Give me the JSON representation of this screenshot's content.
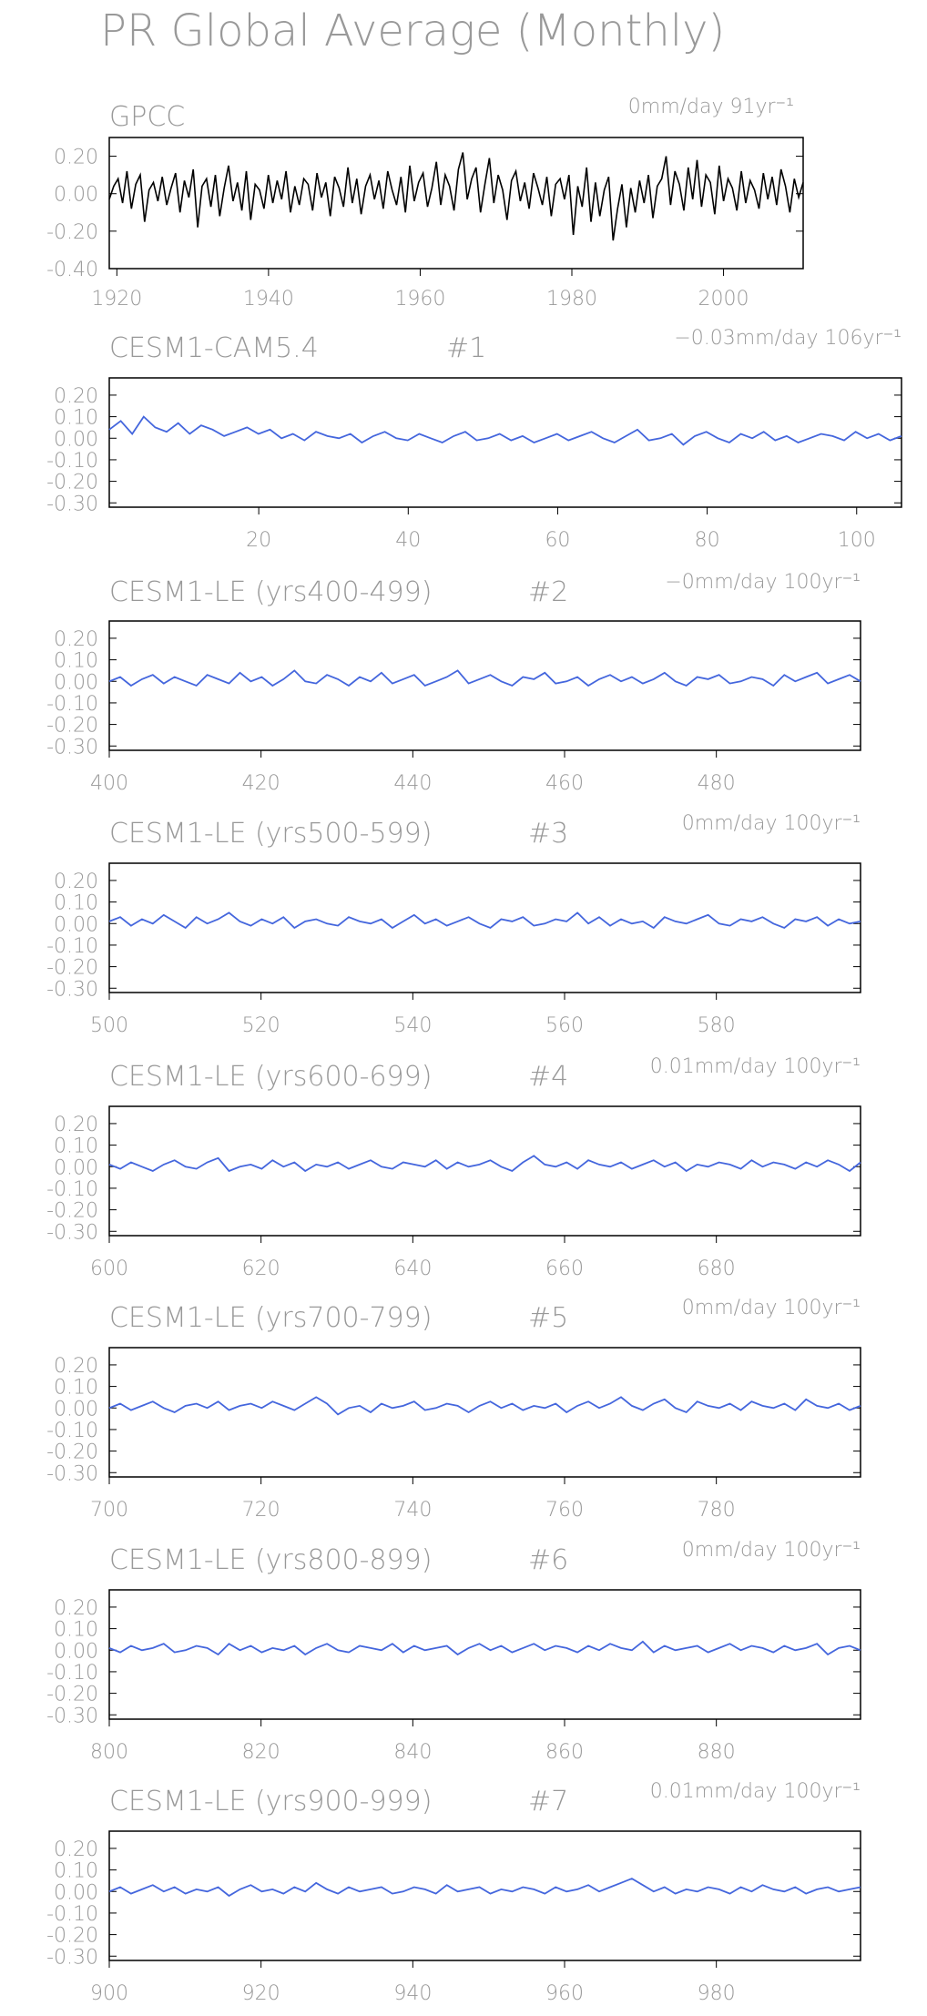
{
  "title": "PR Global Average (Monthly)",
  "colors": {
    "obs": "#000000",
    "model": "#4466dd",
    "text": "#999999",
    "axis": "#000000"
  },
  "chart_data": [
    {
      "type": "line",
      "id": "gpcc",
      "title": "GPCC",
      "number": "",
      "trend_label": "0mm/day 91yr⁻¹",
      "xlim": [
        1919,
        2010.5
      ],
      "ylim": [
        -0.4,
        0.3
      ],
      "xticks": [
        1920,
        1940,
        1960,
        1980,
        2000
      ],
      "yticks": [
        0.2,
        0.0,
        -0.2,
        -0.4
      ],
      "grid": false,
      "series": [
        {
          "values": [
            -0.03,
            0.04,
            0.08,
            -0.05,
            0.12,
            -0.08,
            0.05,
            0.1,
            -0.15,
            0.02,
            0.06,
            -0.04,
            0.09,
            -0.06,
            0.03,
            0.11,
            -0.1,
            0.07,
            -0.02,
            0.13,
            -0.18,
            0.04,
            0.08,
            -0.07,
            0.1,
            -0.12,
            0.03,
            0.15,
            -0.04,
            0.06,
            -0.09,
            0.12,
            -0.14,
            0.05,
            0.02,
            -0.08,
            0.1,
            -0.05,
            0.07,
            -0.03,
            0.12,
            -0.1,
            0.04,
            -0.06,
            0.08,
            0.05,
            -0.09,
            0.11,
            -0.02,
            0.06,
            -0.12,
            0.09,
            0.03,
            -0.07,
            0.14,
            -0.05,
            0.08,
            -0.11,
            0.04,
            0.1,
            -0.03,
            0.07,
            -0.08,
            0.12,
            0.02,
            -0.06,
            0.09,
            -0.1,
            0.15,
            -0.04,
            0.06,
            0.11,
            -0.07,
            0.03,
            0.17,
            -0.06,
            0.1,
            0.04,
            -0.09,
            0.13,
            0.22,
            -0.03,
            0.08,
            0.14,
            -0.1,
            0.05,
            0.19,
            -0.05,
            0.1,
            0.02,
            -0.14,
            0.07,
            0.12,
            -0.04,
            0.06,
            -0.08,
            0.11,
            0.03,
            -0.06,
            0.09,
            -0.12,
            0.05,
            0.08,
            -0.03,
            0.1,
            -0.22,
            0.04,
            -0.07,
            0.14,
            -0.15,
            0.06,
            -0.12,
            0.02,
            0.09,
            -0.25,
            -0.08,
            0.05,
            -0.18,
            0.03,
            -0.1,
            0.07,
            -0.05,
            0.1,
            -0.13,
            0.04,
            0.08,
            0.2,
            -0.06,
            0.12,
            0.05,
            -0.09,
            0.14,
            -0.03,
            0.18,
            -0.07,
            0.1,
            0.06,
            -0.11,
            0.15,
            -0.04,
            0.08,
            0.03,
            -0.09,
            0.12,
            -0.05,
            0.07,
            0.02,
            -0.08,
            0.11,
            -0.03,
            0.09,
            -0.06,
            0.13,
            0.04,
            -0.1,
            0.08,
            -0.02,
            0.06
          ]
        }
      ]
    },
    {
      "type": "line",
      "id": "cam54",
      "title": "CESM1-CAM5.4",
      "number": "#1",
      "trend_label": "−0.03mm/day 106yr⁻¹",
      "xlim": [
        0,
        106
      ],
      "ylim": [
        -0.32,
        0.28
      ],
      "xticks": [
        20,
        40,
        60,
        80,
        100
      ],
      "yticks": [
        0.2,
        0.1,
        0.0,
        -0.1,
        -0.2,
        -0.3
      ],
      "grid": false,
      "series": [
        {
          "values": [
            0.04,
            0.08,
            0.02,
            0.1,
            0.05,
            0.03,
            0.07,
            0.02,
            0.06,
            0.04,
            0.01,
            0.03,
            0.05,
            0.02,
            0.04,
            0.0,
            0.02,
            -0.01,
            0.03,
            0.01,
            0.0,
            0.02,
            -0.02,
            0.01,
            0.03,
            0.0,
            -0.01,
            0.02,
            0.0,
            -0.02,
            0.01,
            0.03,
            -0.01,
            0.0,
            0.02,
            -0.01,
            0.01,
            -0.02,
            0.0,
            0.02,
            -0.01,
            0.01,
            0.03,
            0.0,
            -0.02,
            0.01,
            0.04,
            -0.01,
            0.0,
            0.02,
            -0.03,
            0.01,
            0.03,
            0.0,
            -0.02,
            0.02,
            0.0,
            0.03,
            -0.01,
            0.01,
            -0.02,
            0.0,
            0.02,
            0.01,
            -0.01,
            0.03,
            0.0,
            0.02,
            -0.01,
            0.01
          ]
        }
      ]
    },
    {
      "type": "line",
      "id": "le2",
      "title": "CESM1-LE (yrs400-499)",
      "number": "#2",
      "trend_label": "−0mm/day 100yr⁻¹",
      "xlim": [
        400,
        499
      ],
      "ylim": [
        -0.32,
        0.28
      ],
      "xticks": [
        400,
        420,
        440,
        460,
        480
      ],
      "yticks": [
        0.2,
        0.1,
        0.0,
        -0.1,
        -0.2,
        -0.3
      ],
      "grid": false,
      "series": [
        {
          "values": [
            0.0,
            0.02,
            -0.02,
            0.01,
            0.03,
            -0.01,
            0.02,
            0.0,
            -0.02,
            0.03,
            0.01,
            -0.01,
            0.04,
            0.0,
            0.02,
            -0.02,
            0.01,
            0.05,
            0.0,
            -0.01,
            0.03,
            0.01,
            -0.02,
            0.02,
            0.0,
            0.04,
            -0.01,
            0.01,
            0.03,
            -0.02,
            0.0,
            0.02,
            0.05,
            -0.01,
            0.01,
            0.03,
            0.0,
            -0.02,
            0.02,
            0.01,
            0.04,
            -0.01,
            0.0,
            0.02,
            -0.02,
            0.01,
            0.03,
            0.0,
            0.02,
            -0.01,
            0.01,
            0.04,
            0.0,
            -0.02,
            0.02,
            0.01,
            0.03,
            -0.01,
            0.0,
            0.02,
            0.01,
            -0.02,
            0.03,
            0.0,
            0.02,
            0.04,
            -0.01,
            0.01,
            0.03,
            0.0
          ]
        }
      ]
    },
    {
      "type": "line",
      "id": "le3",
      "title": "CESM1-LE (yrs500-599)",
      "number": "#3",
      "trend_label": "0mm/day 100yr⁻¹",
      "xlim": [
        500,
        599
      ],
      "ylim": [
        -0.32,
        0.28
      ],
      "xticks": [
        500,
        520,
        540,
        560,
        580
      ],
      "yticks": [
        0.2,
        0.1,
        0.0,
        -0.1,
        -0.2,
        -0.3
      ],
      "grid": false,
      "series": [
        {
          "values": [
            0.01,
            0.03,
            -0.01,
            0.02,
            0.0,
            0.04,
            0.01,
            -0.02,
            0.03,
            0.0,
            0.02,
            0.05,
            0.01,
            -0.01,
            0.02,
            0.0,
            0.03,
            -0.02,
            0.01,
            0.02,
            0.0,
            -0.01,
            0.03,
            0.01,
            0.0,
            0.02,
            -0.02,
            0.01,
            0.04,
            0.0,
            0.02,
            -0.01,
            0.01,
            0.03,
            0.0,
            -0.02,
            0.02,
            0.01,
            0.03,
            -0.01,
            0.0,
            0.02,
            0.01,
            0.05,
            0.0,
            0.03,
            -0.01,
            0.02,
            0.0,
            0.01,
            -0.02,
            0.03,
            0.01,
            0.0,
            0.02,
            0.04,
            0.0,
            -0.01,
            0.02,
            0.01,
            0.03,
            0.0,
            -0.02,
            0.02,
            0.01,
            0.03,
            -0.01,
            0.02,
            0.0,
            0.01
          ]
        }
      ]
    },
    {
      "type": "line",
      "id": "le4",
      "title": "CESM1-LE (yrs600-699)",
      "number": "#4",
      "trend_label": "0.01mm/day 100yr⁻¹",
      "xlim": [
        600,
        699
      ],
      "ylim": [
        -0.32,
        0.28
      ],
      "xticks": [
        600,
        620,
        640,
        660,
        680
      ],
      "yticks": [
        0.2,
        0.1,
        0.0,
        -0.1,
        -0.2,
        -0.3
      ],
      "grid": false,
      "series": [
        {
          "values": [
            0.01,
            -0.01,
            0.02,
            0.0,
            -0.02,
            0.01,
            0.03,
            0.0,
            -0.01,
            0.02,
            0.04,
            -0.02,
            0.0,
            0.01,
            -0.01,
            0.03,
            0.0,
            0.02,
            -0.02,
            0.01,
            0.0,
            0.02,
            -0.01,
            0.01,
            0.03,
            0.0,
            -0.01,
            0.02,
            0.01,
            0.0,
            0.03,
            -0.01,
            0.02,
            0.0,
            0.01,
            0.03,
            0.0,
            -0.02,
            0.02,
            0.05,
            0.01,
            0.0,
            0.02,
            -0.01,
            0.03,
            0.01,
            0.0,
            0.02,
            -0.01,
            0.01,
            0.03,
            0.0,
            0.02,
            -0.02,
            0.01,
            0.0,
            0.02,
            0.01,
            -0.01,
            0.03,
            0.0,
            0.02,
            0.01,
            -0.01,
            0.02,
            0.0,
            0.03,
            0.01,
            -0.02,
            0.02
          ]
        }
      ]
    },
    {
      "type": "line",
      "id": "le5",
      "title": "CESM1-LE (yrs700-799)",
      "number": "#5",
      "trend_label": "0mm/day 100yr⁻¹",
      "xlim": [
        700,
        799
      ],
      "ylim": [
        -0.32,
        0.28
      ],
      "xticks": [
        700,
        720,
        740,
        760,
        780
      ],
      "yticks": [
        0.2,
        0.1,
        0.0,
        -0.1,
        -0.2,
        -0.3
      ],
      "grid": false,
      "series": [
        {
          "values": [
            0.0,
            0.02,
            -0.01,
            0.01,
            0.03,
            0.0,
            -0.02,
            0.01,
            0.02,
            0.0,
            0.03,
            -0.01,
            0.01,
            0.02,
            0.0,
            0.03,
            0.01,
            -0.01,
            0.02,
            0.05,
            0.02,
            -0.03,
            0.0,
            0.01,
            -0.02,
            0.02,
            0.0,
            0.01,
            0.03,
            -0.01,
            0.0,
            0.02,
            0.01,
            -0.02,
            0.01,
            0.03,
            0.0,
            0.02,
            -0.01,
            0.01,
            0.0,
            0.02,
            -0.02,
            0.01,
            0.03,
            0.0,
            0.02,
            0.05,
            0.01,
            -0.01,
            0.02,
            0.04,
            0.0,
            -0.02,
            0.03,
            0.01,
            0.0,
            0.02,
            -0.01,
            0.03,
            0.01,
            0.0,
            0.02,
            -0.01,
            0.04,
            0.01,
            0.0,
            0.02,
            -0.01,
            0.01
          ]
        }
      ]
    },
    {
      "type": "line",
      "id": "le6",
      "title": "CESM1-LE (yrs800-899)",
      "number": "#6",
      "trend_label": "0mm/day 100yr⁻¹",
      "xlim": [
        800,
        899
      ],
      "ylim": [
        -0.32,
        0.28
      ],
      "xticks": [
        800,
        820,
        840,
        860,
        880
      ],
      "yticks": [
        0.2,
        0.1,
        0.0,
        -0.1,
        -0.2,
        -0.3
      ],
      "grid": false,
      "series": [
        {
          "values": [
            0.01,
            -0.01,
            0.02,
            0.0,
            0.01,
            0.03,
            -0.01,
            0.0,
            0.02,
            0.01,
            -0.02,
            0.03,
            0.0,
            0.02,
            -0.01,
            0.01,
            0.0,
            0.02,
            -0.02,
            0.01,
            0.03,
            0.0,
            -0.01,
            0.02,
            0.01,
            0.0,
            0.03,
            -0.01,
            0.02,
            0.0,
            0.01,
            0.02,
            -0.02,
            0.01,
            0.03,
            0.0,
            0.02,
            -0.01,
            0.01,
            0.03,
            0.0,
            0.02,
            0.01,
            -0.01,
            0.02,
            0.0,
            0.03,
            0.01,
            0.0,
            0.04,
            -0.01,
            0.02,
            0.0,
            0.01,
            0.02,
            -0.01,
            0.01,
            0.03,
            0.0,
            0.02,
            0.01,
            -0.01,
            0.02,
            0.0,
            0.01,
            0.03,
            -0.02,
            0.01,
            0.02,
            0.0
          ]
        }
      ]
    },
    {
      "type": "line",
      "id": "le7",
      "title": "CESM1-LE (yrs900-999)",
      "number": "#7",
      "trend_label": "0.01mm/day 100yr⁻¹",
      "xlim": [
        900,
        999
      ],
      "ylim": [
        -0.32,
        0.28
      ],
      "xticks": [
        900,
        920,
        940,
        960,
        980
      ],
      "yticks": [
        0.2,
        0.1,
        0.0,
        -0.1,
        -0.2,
        -0.3
      ],
      "grid": false,
      "series": [
        {
          "values": [
            0.0,
            0.02,
            -0.01,
            0.01,
            0.03,
            0.0,
            0.02,
            -0.01,
            0.01,
            0.0,
            0.02,
            -0.02,
            0.01,
            0.03,
            0.0,
            0.01,
            -0.01,
            0.02,
            0.0,
            0.04,
            0.01,
            -0.01,
            0.02,
            0.0,
            0.01,
            0.02,
            -0.01,
            0.0,
            0.02,
            0.01,
            -0.01,
            0.03,
            0.0,
            0.01,
            0.02,
            -0.01,
            0.01,
            0.0,
            0.02,
            0.01,
            -0.01,
            0.02,
            0.0,
            0.01,
            0.03,
            0.0,
            0.02,
            0.04,
            0.06,
            0.03,
            0.0,
            0.02,
            -0.01,
            0.01,
            0.0,
            0.02,
            0.01,
            -0.01,
            0.02,
            0.0,
            0.03,
            0.01,
            0.0,
            0.02,
            -0.01,
            0.01,
            0.02,
            0.0,
            0.01,
            0.02
          ]
        }
      ]
    }
  ]
}
